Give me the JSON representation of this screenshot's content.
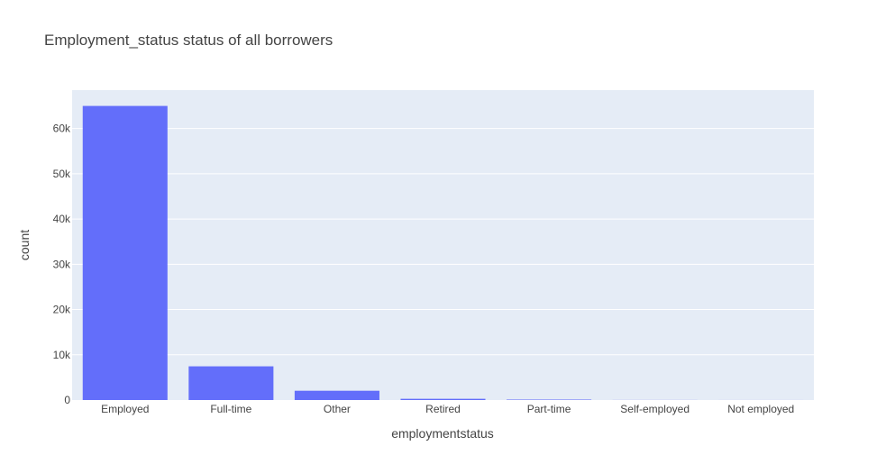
{
  "chart_data": {
    "type": "bar",
    "title": "Employment_status status of all borrowers",
    "xlabel": "employmentstatus",
    "ylabel": "count",
    "categories": [
      "Employed",
      "Full-time",
      "Other",
      "Retired",
      "Part-time",
      "Self-employed",
      "Not employed"
    ],
    "values": [
      65000,
      7450,
      2050,
      270,
      100,
      15,
      5
    ],
    "ylim": [
      0,
      68500
    ],
    "yticks": [
      0,
      10000,
      20000,
      30000,
      40000,
      50000,
      60000
    ],
    "ytick_labels": [
      "0",
      "10k",
      "20k",
      "30k",
      "40k",
      "50k",
      "60k"
    ],
    "grid": true,
    "legend": "none",
    "colors": {
      "bar": "#636efa",
      "plot_background": "#e5ecf6",
      "gridline": "#ffffff",
      "text": "#444444"
    }
  }
}
